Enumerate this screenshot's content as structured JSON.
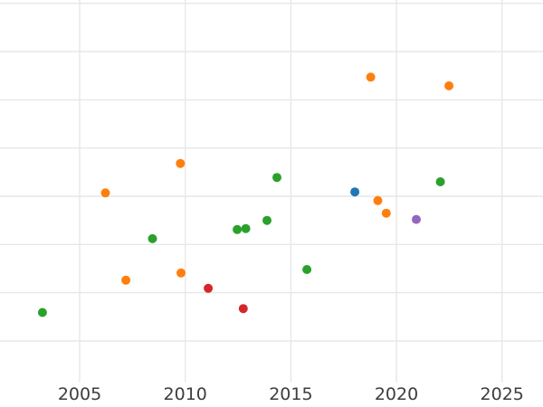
{
  "chart_data": {
    "type": "scatter",
    "title": "",
    "xlabel": "",
    "ylabel": "",
    "grid": true,
    "legend": false,
    "x_axis": {
      "tick_labels": [
        "2005",
        "2010",
        "2015",
        "2020",
        "2025"
      ],
      "tick_values": [
        2005,
        2010,
        2015,
        2020,
        2025
      ],
      "range": [
        2001.23,
        2026.94
      ]
    },
    "y_axis": {
      "tick_labels_visible": false,
      "gridline_values": [
        1,
        2,
        3,
        4,
        5,
        6,
        7,
        8
      ],
      "range": [
        -0.37,
        8.07
      ],
      "plot_floor_value": 0.14
    },
    "marker": {
      "radius_px": 5
    },
    "series": [
      {
        "name": "green",
        "color": "#2ca02c",
        "points": [
          {
            "x": 2003.24,
            "y": 1.59
          },
          {
            "x": 2008.45,
            "y": 3.12
          },
          {
            "x": 2012.46,
            "y": 3.31
          },
          {
            "x": 2012.87,
            "y": 3.33
          },
          {
            "x": 2013.87,
            "y": 3.5
          },
          {
            "x": 2014.34,
            "y": 4.39
          },
          {
            "x": 2015.76,
            "y": 2.48
          },
          {
            "x": 2022.08,
            "y": 4.3
          }
        ]
      },
      {
        "name": "orange",
        "color": "#ff7f0e",
        "points": [
          {
            "x": 2006.22,
            "y": 4.07
          },
          {
            "x": 2007.19,
            "y": 2.26
          },
          {
            "x": 2009.77,
            "y": 4.68
          },
          {
            "x": 2009.8,
            "y": 2.41
          },
          {
            "x": 2018.78,
            "y": 6.47
          },
          {
            "x": 2019.12,
            "y": 3.91
          },
          {
            "x": 2019.52,
            "y": 3.65
          },
          {
            "x": 2022.49,
            "y": 6.29
          }
        ]
      },
      {
        "name": "red",
        "color": "#d62728",
        "points": [
          {
            "x": 2011.09,
            "y": 2.09
          },
          {
            "x": 2012.75,
            "y": 1.67
          }
        ]
      },
      {
        "name": "blue",
        "color": "#1f77b4",
        "points": [
          {
            "x": 2018.03,
            "y": 4.09
          }
        ]
      },
      {
        "name": "purple",
        "color": "#9467bd",
        "points": [
          {
            "x": 2020.94,
            "y": 3.52
          }
        ]
      }
    ]
  },
  "colors": {
    "background": "#ffffff",
    "gridline": "#e7e7e7",
    "tick_label": "#3d3d3d"
  },
  "tick_font_size_px": 19
}
